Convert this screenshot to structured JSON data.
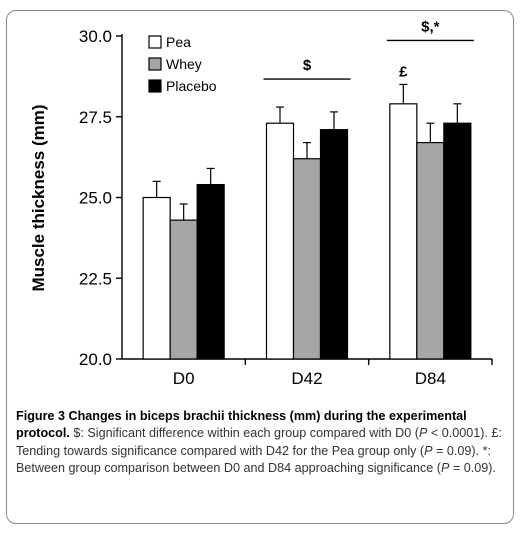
{
  "chart_data": {
    "type": "bar",
    "ylabel": "Muscle thickness (mm)",
    "xlabel": "",
    "ylim": [
      20.0,
      30.0
    ],
    "yticks": [
      "20.0",
      "22.5",
      "25.0",
      "27.5",
      "30.0"
    ],
    "ytick_values": [
      20.0,
      22.5,
      25.0,
      27.5,
      30.0
    ],
    "grid": false,
    "legend_position": "top-left",
    "categories": [
      "D0",
      "D42",
      "D84"
    ],
    "series": [
      {
        "name": "Pea",
        "color": "#ffffff",
        "values": [
          25.0,
          27.3,
          27.9
        ],
        "errors": [
          0.5,
          0.5,
          0.6
        ]
      },
      {
        "name": "Whey",
        "color": "#a6a6a6",
        "values": [
          24.3,
          26.2,
          26.7
        ],
        "errors": [
          0.5,
          0.5,
          0.6
        ]
      },
      {
        "name": "Placebo",
        "color": "#000000",
        "values": [
          25.4,
          27.1,
          27.3
        ],
        "errors": [
          0.5,
          0.55,
          0.6
        ]
      }
    ],
    "annotations": [
      {
        "text": "$",
        "category": "D42",
        "type": "bracket"
      },
      {
        "text": "$,*",
        "category": "D84",
        "type": "bracket"
      },
      {
        "text": "£",
        "category": "D84",
        "series": "Pea",
        "type": "marker"
      }
    ]
  },
  "caption": {
    "title": "Figure 3 Changes in biceps brachii thickness (mm) during the experimental protocol.",
    "parts": [
      {
        "t": " $: Significant difference within each group compared with D0 (",
        "i": false
      },
      {
        "t": "P",
        "i": true
      },
      {
        "t": " < 0.0001). £: Tending towards significance compared with D42 for the Pea group only (",
        "i": false
      },
      {
        "t": "P",
        "i": true
      },
      {
        "t": " = 0.09). *: Between group comparison between D0 and D84 approaching significance (",
        "i": false
      },
      {
        "t": "P",
        "i": true
      },
      {
        "t": " = 0.09).",
        "i": false
      }
    ]
  }
}
